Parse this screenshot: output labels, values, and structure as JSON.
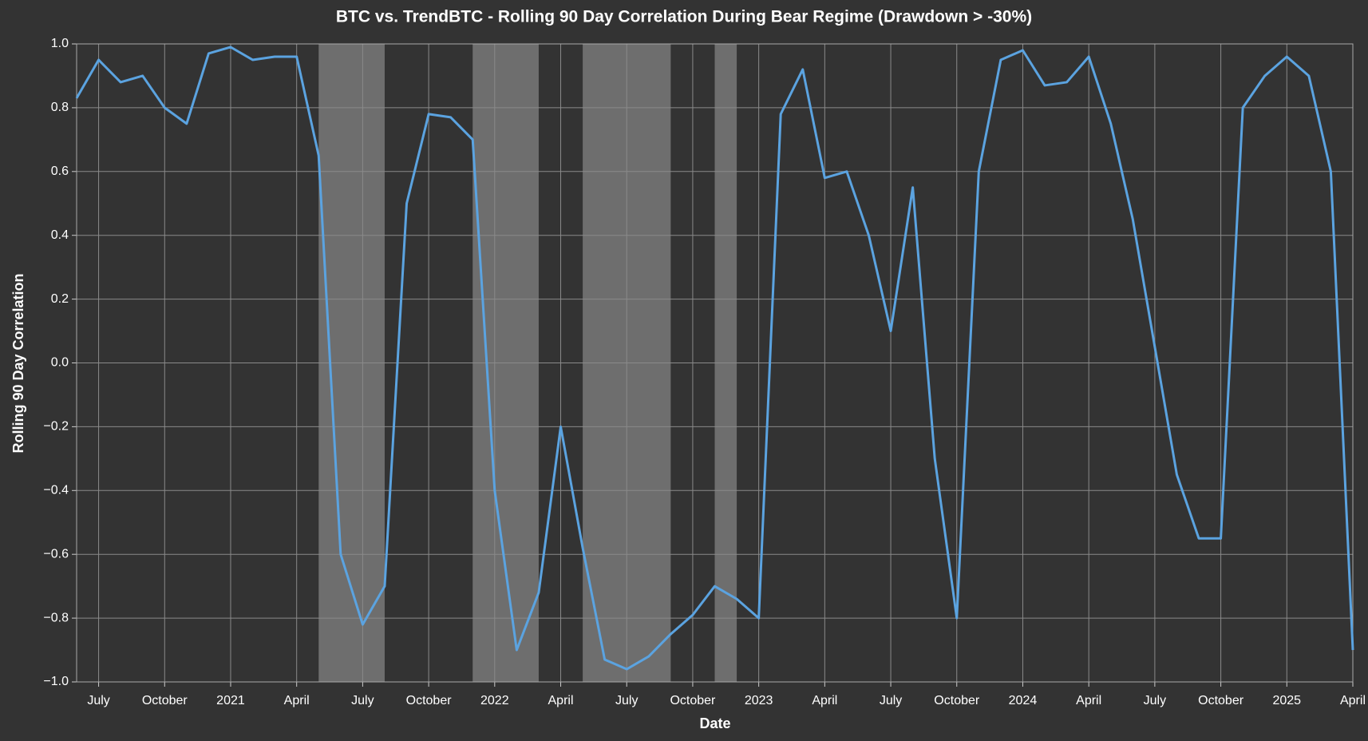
{
  "chart_data": {
    "type": "line",
    "title": "BTC vs. TrendBTC - Rolling 90 Day Correlation During Bear Regime (Drawdown > -30%)",
    "x_label": "Date",
    "y_label": "Rolling 90 Day Correlation",
    "x": [
      "2020-06",
      "2020-07",
      "2020-08",
      "2020-09",
      "2020-10",
      "2020-11",
      "2020-12",
      "2021-01",
      "2021-02",
      "2021-03",
      "2021-04",
      "2021-05",
      "2021-06",
      "2021-07",
      "2021-08",
      "2021-09",
      "2021-10",
      "2021-11",
      "2021-12",
      "2022-01",
      "2022-02",
      "2022-03",
      "2022-04",
      "2022-05",
      "2022-06",
      "2022-07",
      "2022-08",
      "2022-09",
      "2022-10",
      "2022-11",
      "2022-12",
      "2023-01",
      "2023-02",
      "2023-03",
      "2023-04",
      "2023-05",
      "2023-06",
      "2023-07",
      "2023-08",
      "2023-09",
      "2023-10",
      "2023-11",
      "2023-12",
      "2024-01",
      "2024-02",
      "2024-03",
      "2024-04",
      "2024-05",
      "2024-06",
      "2024-07",
      "2024-08",
      "2024-09",
      "2024-10",
      "2024-11",
      "2024-12",
      "2025-01",
      "2025-02",
      "2025-03",
      "2025-04"
    ],
    "values": [
      0.83,
      0.95,
      0.88,
      0.9,
      0.8,
      0.75,
      0.97,
      0.99,
      0.95,
      0.96,
      0.96,
      0.65,
      -0.6,
      -0.82,
      -0.7,
      0.5,
      0.78,
      0.77,
      0.7,
      -0.4,
      -0.9,
      -0.72,
      -0.2,
      -0.58,
      -0.93,
      -0.96,
      -0.92,
      -0.85,
      -0.79,
      -0.7,
      -0.74,
      -0.8,
      0.78,
      0.92,
      0.58,
      0.6,
      0.4,
      0.1,
      0.55,
      -0.3,
      -0.8,
      0.6,
      0.95,
      0.98,
      0.87,
      0.88,
      0.96,
      0.75,
      0.45,
      0.05,
      -0.35,
      -0.55,
      -0.55,
      0.8,
      0.9,
      0.96,
      0.9,
      0.6,
      -0.9
    ],
    "color": "#5ba3e0",
    "regions": [
      [
        "2021-05",
        "2021-08"
      ],
      [
        "2021-12",
        "2022-03"
      ],
      [
        "2022-05",
        "2022-09"
      ],
      [
        "2022-11",
        "2022-12"
      ]
    ],
    "region_color": "#6e6e6e",
    "xlim": [
      "2020-06",
      "2025-04"
    ],
    "xticks": [
      {
        "value": "2020-07",
        "label": "July"
      },
      {
        "value": "2020-10",
        "label": "October"
      },
      {
        "value": "2021-01",
        "label": "2021"
      },
      {
        "value": "2021-04",
        "label": "April"
      },
      {
        "value": "2021-07",
        "label": "July"
      },
      {
        "value": "2021-10",
        "label": "October"
      },
      {
        "value": "2022-01",
        "label": "2022"
      },
      {
        "value": "2022-04",
        "label": "April"
      },
      {
        "value": "2022-07",
        "label": "July"
      },
      {
        "value": "2022-10",
        "label": "October"
      },
      {
        "value": "2023-01",
        "label": "2023"
      },
      {
        "value": "2023-04",
        "label": "April"
      },
      {
        "value": "2023-07",
        "label": "July"
      },
      {
        "value": "2023-10",
        "label": "October"
      },
      {
        "value": "2024-01",
        "label": "2024"
      },
      {
        "value": "2024-04",
        "label": "April"
      },
      {
        "value": "2024-07",
        "label": "July"
      },
      {
        "value": "2024-10",
        "label": "October"
      },
      {
        "value": "2025-01",
        "label": "2025"
      },
      {
        "value": "2025-04",
        "label": "April"
      }
    ],
    "ylim": [
      -1,
      1
    ],
    "yticks": [
      {
        "value": -1,
        "label": "−1.0"
      },
      {
        "value": -0.8,
        "label": "−0.8"
      },
      {
        "value": -0.6,
        "label": "−0.6"
      },
      {
        "value": -0.4,
        "label": "−0.4"
      },
      {
        "value": -0.2,
        "label": "−0.2"
      },
      {
        "value": 0,
        "label": "0.0"
      },
      {
        "value": 0.2,
        "label": "0.2"
      },
      {
        "value": 0.4,
        "label": "0.4"
      },
      {
        "value": 0.6,
        "label": "0.6"
      },
      {
        "value": 0.8,
        "label": "0.8"
      },
      {
        "value": 1,
        "label": "1.0"
      }
    ],
    "grid": true
  }
}
